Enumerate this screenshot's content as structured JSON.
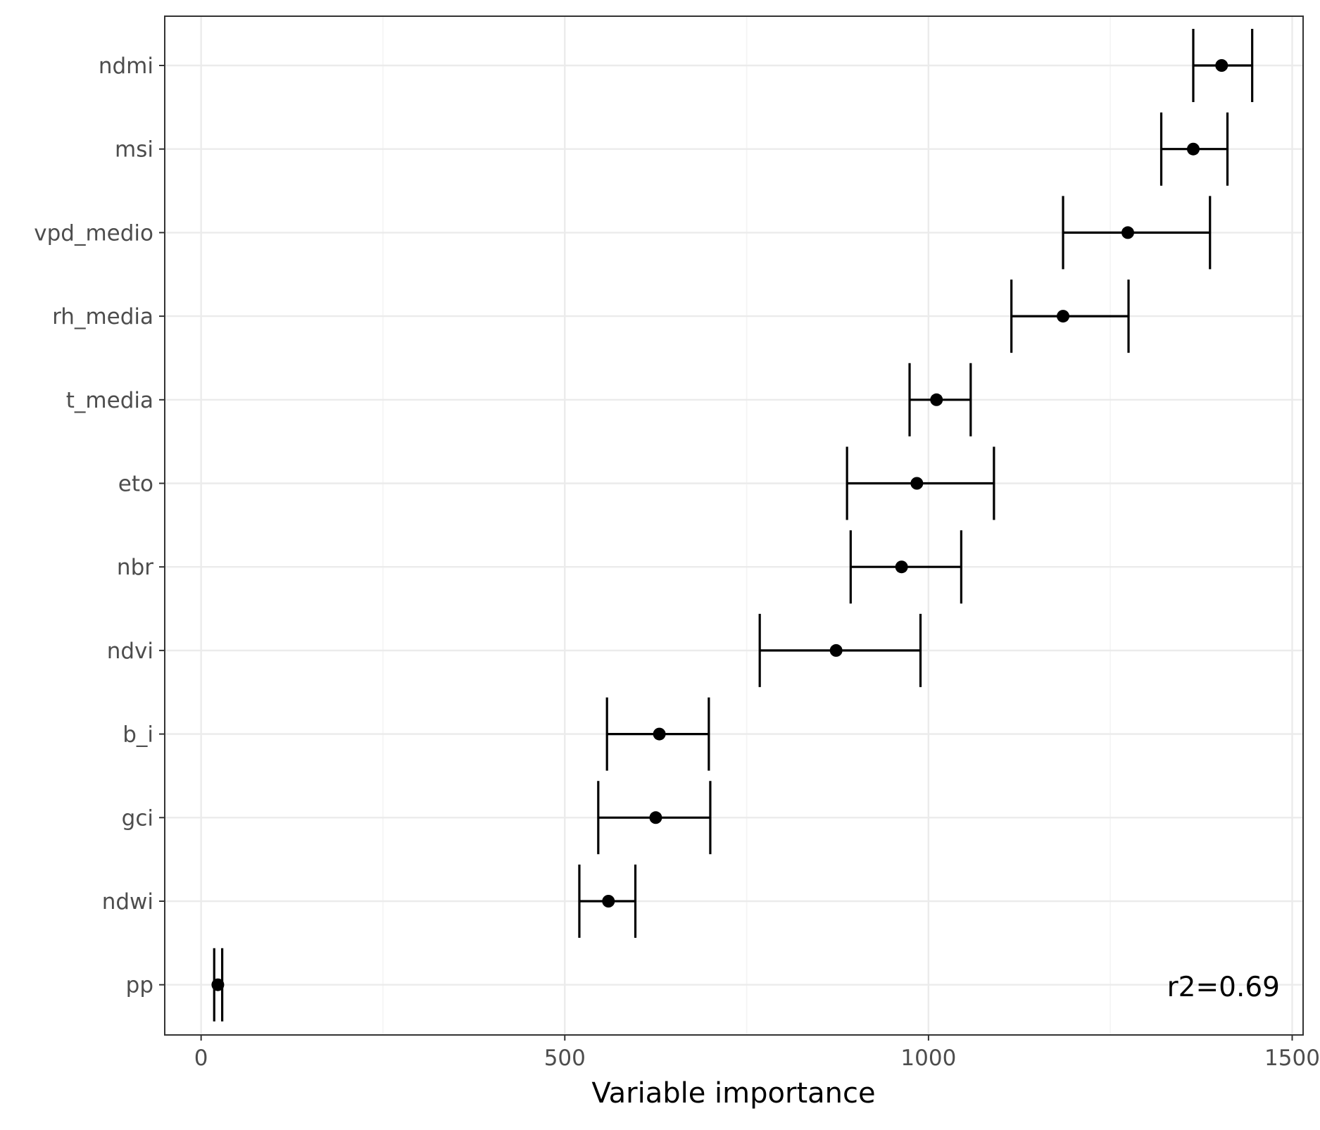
{
  "chart_data": {
    "type": "errorbar",
    "xlabel": "Variable importance",
    "xlim": [
      -50,
      1515
    ],
    "xticks": [
      0,
      500,
      1000,
      1500
    ],
    "grid": true,
    "legend": "none",
    "colors": {
      "panel_border": "#333333",
      "grid_major": "#ebebeb",
      "grid_minor": "#f4f4f4",
      "marks": "#000000",
      "tick_text": "#4d4d4d"
    },
    "annotation": "r2=0.69",
    "categories": [
      "ndmi",
      "msi",
      "vpd_medio",
      "rh_media",
      "t_media",
      "eto",
      "nbr",
      "ndvi",
      "b_i",
      "gci",
      "ndwi",
      "pp"
    ],
    "values": [
      1403,
      1364,
      1274,
      1185,
      1011,
      984,
      963,
      873,
      630,
      625,
      560,
      23
    ],
    "lower": [
      1364,
      1320,
      1185,
      1114,
      974,
      888,
      893,
      768,
      558,
      546,
      520,
      18
    ],
    "upper": [
      1445,
      1411,
      1387,
      1275,
      1058,
      1090,
      1045,
      989,
      698,
      700,
      597,
      29
    ]
  }
}
